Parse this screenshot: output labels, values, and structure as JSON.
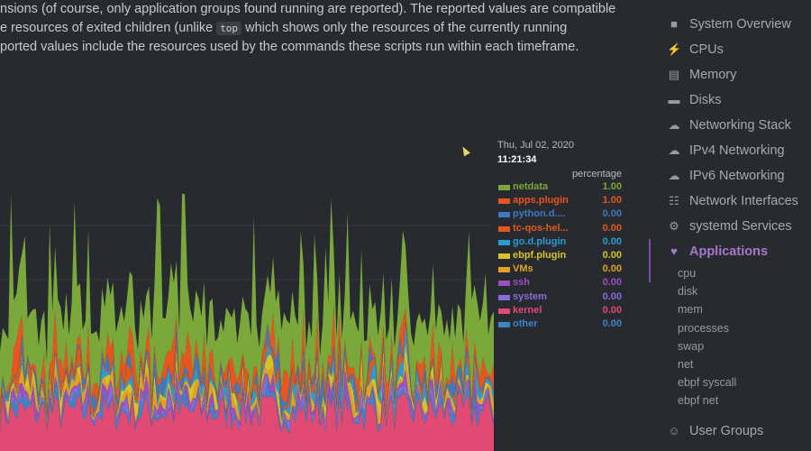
{
  "intro": {
    "line1": "nsions (of course, only application groups found running are reported). The reported values are compatible",
    "line2_pre": "e resources of exited children (unlike ",
    "line2_code": "top",
    "line2_post": " which shows only the resources of the currently running",
    "line3": "ported values include the resources used by the commands these scripts run within each timeframe."
  },
  "legend": {
    "date": "Thu, Jul 02, 2020",
    "time": "11:21:34",
    "units": "percentage",
    "items": [
      {
        "name": "netdata",
        "value": "1.00",
        "color": "#7ba83a"
      },
      {
        "name": "apps.plugin",
        "value": "1.00",
        "color": "#e8561e"
      },
      {
        "name": "python.d....",
        "value": "0.00",
        "color": "#3f79c1"
      },
      {
        "name": "tc-qos-hel...",
        "value": "0.00",
        "color": "#e05a1f"
      },
      {
        "name": "go.d.plugin",
        "value": "0.00",
        "color": "#2a9bd3"
      },
      {
        "name": "ebpf.plugin",
        "value": "0.00",
        "color": "#d8c22a"
      },
      {
        "name": "VMs",
        "value": "0.00",
        "color": "#e3a024"
      },
      {
        "name": "ssh",
        "value": "0.00",
        "color": "#9c4fbf"
      },
      {
        "name": "system",
        "value": "0.00",
        "color": "#8a6bd8"
      },
      {
        "name": "kernel",
        "value": "0.00",
        "color": "#e04a73"
      },
      {
        "name": "other",
        "value": "0.00",
        "color": "#3a86c8"
      }
    ]
  },
  "chart_data": {
    "type": "area",
    "stacked": true,
    "units": "percentage",
    "series": [
      {
        "name": "netdata",
        "color": "#7ba83a"
      },
      {
        "name": "apps.plugin",
        "color": "#e8561e"
      },
      {
        "name": "python.d....",
        "color": "#3f79c1"
      },
      {
        "name": "tc-qos-hel...",
        "color": "#e05a1f"
      },
      {
        "name": "go.d.plugin",
        "color": "#2a9bd3"
      },
      {
        "name": "ebpf.plugin",
        "color": "#d8c22a"
      },
      {
        "name": "VMs",
        "color": "#e3a024"
      },
      {
        "name": "ssh",
        "color": "#9c4fbf"
      },
      {
        "name": "system",
        "color": "#8a6bd8"
      },
      {
        "name": "kernel",
        "color": "#e04a73"
      },
      {
        "name": "other",
        "color": "#3a86c8"
      }
    ]
  },
  "sidebar": {
    "items": [
      {
        "label": "System Overview",
        "icon": "bookmark-icon"
      },
      {
        "label": "CPUs",
        "icon": "bolt-icon"
      },
      {
        "label": "Memory",
        "icon": "memory-icon"
      },
      {
        "label": "Disks",
        "icon": "hdd-icon"
      },
      {
        "label": "Networking Stack",
        "icon": "cloud-icon"
      },
      {
        "label": "IPv4 Networking",
        "icon": "cloud-icon"
      },
      {
        "label": "IPv6 Networking",
        "icon": "cloud-icon"
      },
      {
        "label": "Network Interfaces",
        "icon": "network-icon"
      },
      {
        "label": "systemd Services",
        "icon": "cogs-icon"
      },
      {
        "label": "Applications",
        "icon": "heartbeat-icon"
      }
    ],
    "sub_items": [
      "cpu",
      "disk",
      "mem",
      "processes",
      "swap",
      "net",
      "ebpf syscall",
      "ebpf net"
    ],
    "bottom_item": {
      "label": "User Groups",
      "icon": "users-icon"
    },
    "active_color": "#a778c9"
  }
}
